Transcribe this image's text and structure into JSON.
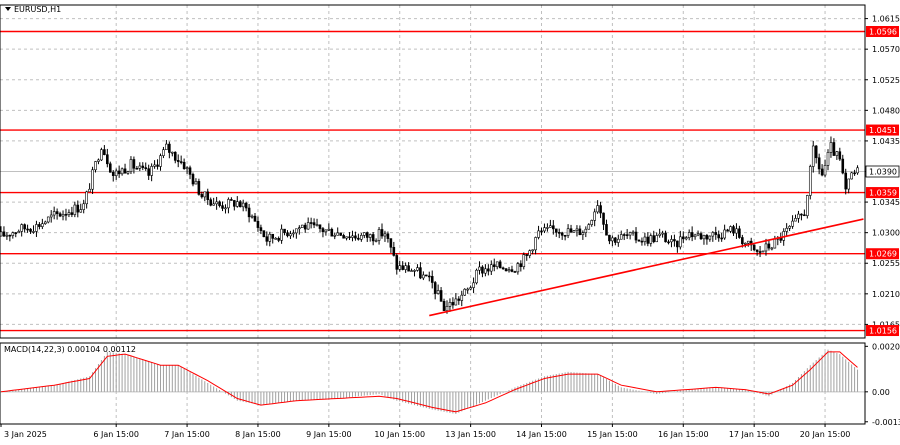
{
  "chart_data": [
    {
      "type": "candlestick",
      "title": "EURUSD,H1",
      "y_ticks": [
        "1.0615",
        "1.0570",
        "1.0525",
        "1.0480",
        "1.0435",
        "1.0390",
        "1.0345",
        "1.0300",
        "1.0255",
        "1.0210",
        "1.0165"
      ],
      "ylim": [
        1.0145,
        1.0635
      ],
      "x_ticks": [
        "3 Jan 2025",
        "6 Jan 15:00",
        "7 Jan 15:00",
        "8 Jan 15:00",
        "9 Jan 15:00",
        "10 Jan 15:00",
        "13 Jan 15:00",
        "14 Jan 15:00",
        "15 Jan 15:00",
        "16 Jan 15:00",
        "17 Jan 15:00",
        "20 Jan 15:00"
      ],
      "current_price": "1.0390",
      "horizontal_levels": [
        {
          "value": 1.0596,
          "label": "1.0596"
        },
        {
          "value": 1.0451,
          "label": "1.0451"
        },
        {
          "value": 1.0359,
          "label": "1.0359"
        },
        {
          "value": 1.0269,
          "label": "1.0269"
        },
        {
          "value": 1.0156,
          "label": "1.0156"
        }
      ],
      "trendline": {
        "from": {
          "x": "13 Jan 01:00",
          "y": 1.0178
        },
        "to": {
          "x": "21 Jan 04:00",
          "y": 1.032
        }
      },
      "close_path": [
        {
          "x": "3 Jan 00:00",
          "y": 1.0295
        },
        {
          "x": "3 Jan 06:00",
          "y": 1.0305
        },
        {
          "x": "3 Jan 12:00",
          "y": 1.031
        },
        {
          "x": "3 Jan 18:00",
          "y": 1.0325
        },
        {
          "x": "6 Jan 04:00",
          "y": 1.034
        },
        {
          "x": "6 Jan 10:00",
          "y": 1.043
        },
        {
          "x": "6 Jan 14:00",
          "y": 1.0385
        },
        {
          "x": "6 Jan 20:00",
          "y": 1.04
        },
        {
          "x": "7 Jan 02:00",
          "y": 1.0385
        },
        {
          "x": "7 Jan 08:00",
          "y": 1.0425
        },
        {
          "x": "7 Jan 14:00",
          "y": 1.04
        },
        {
          "x": "7 Jan 20:00",
          "y": 1.0355
        },
        {
          "x": "8 Jan 02:00",
          "y": 1.034
        },
        {
          "x": "8 Jan 08:00",
          "y": 1.0345
        },
        {
          "x": "8 Jan 12:00",
          "y": 1.033
        },
        {
          "x": "8 Jan 18:00",
          "y": 1.029
        },
        {
          "x": "9 Jan 00:00",
          "y": 1.03
        },
        {
          "x": "9 Jan 06:00",
          "y": 1.031
        },
        {
          "x": "9 Jan 12:00",
          "y": 1.0305
        },
        {
          "x": "9 Jan 18:00",
          "y": 1.03
        },
        {
          "x": "10 Jan 00:00",
          "y": 1.0295
        },
        {
          "x": "10 Jan 06:00",
          "y": 1.0295
        },
        {
          "x": "10 Jan 10:00",
          "y": 1.03
        },
        {
          "x": "10 Jan 14:00",
          "y": 1.025
        },
        {
          "x": "10 Jan 20:00",
          "y": 1.0245
        },
        {
          "x": "13 Jan 02:00",
          "y": 1.0225
        },
        {
          "x": "13 Jan 06:00",
          "y": 1.019
        },
        {
          "x": "13 Jan 10:00",
          "y": 1.02
        },
        {
          "x": "13 Jan 14:00",
          "y": 1.0215
        },
        {
          "x": "13 Jan 18:00",
          "y": 1.0245
        },
        {
          "x": "14 Jan 00:00",
          "y": 1.025
        },
        {
          "x": "14 Jan 06:00",
          "y": 1.025
        },
        {
          "x": "14 Jan 10:00",
          "y": 1.0265
        },
        {
          "x": "14 Jan 14:00",
          "y": 1.03
        },
        {
          "x": "14 Jan 20:00",
          "y": 1.0305
        },
        {
          "x": "15 Jan 02:00",
          "y": 1.03
        },
        {
          "x": "15 Jan 06:00",
          "y": 1.0305
        },
        {
          "x": "15 Jan 10:00",
          "y": 1.0345
        },
        {
          "x": "15 Jan 14:00",
          "y": 1.029
        },
        {
          "x": "15 Jan 20:00",
          "y": 1.0295
        },
        {
          "x": "16 Jan 02:00",
          "y": 1.029
        },
        {
          "x": "16 Jan 08:00",
          "y": 1.0295
        },
        {
          "x": "16 Jan 12:00",
          "y": 1.028
        },
        {
          "x": "16 Jan 16:00",
          "y": 1.03
        },
        {
          "x": "16 Jan 22:00",
          "y": 1.0295
        },
        {
          "x": "17 Jan 04:00",
          "y": 1.03
        },
        {
          "x": "17 Jan 08:00",
          "y": 1.0305
        },
        {
          "x": "17 Jan 12:00",
          "y": 1.0285
        },
        {
          "x": "17 Jan 16:00",
          "y": 1.027
        },
        {
          "x": "17 Jan 22:00",
          "y": 1.0285
        },
        {
          "x": "20 Jan 04:00",
          "y": 1.031
        },
        {
          "x": "20 Jan 08:00",
          "y": 1.033
        },
        {
          "x": "20 Jan 11:00",
          "y": 1.042
        },
        {
          "x": "20 Jan 14:00",
          "y": 1.0385
        },
        {
          "x": "20 Jan 17:00",
          "y": 1.0425
        },
        {
          "x": "20 Jan 20:00",
          "y": 1.0405
        },
        {
          "x": "20 Jan 22:00",
          "y": 1.036
        },
        {
          "x": "21 Jan 00:00",
          "y": 1.0385
        },
        {
          "x": "21 Jan 02:00",
          "y": 1.039
        }
      ]
    },
    {
      "type": "bar",
      "title": "MACD(14,22,3) 0.00104 0.00112",
      "y_ticks": [
        "0.00205",
        "0.00",
        "-0.00135"
      ],
      "ylim": [
        -0.00145,
        0.0022
      ],
      "histogram_path": [
        {
          "x": "3 Jan 00:00",
          "y": 0.0
        },
        {
          "x": "3 Jan 18:00",
          "y": 0.0003
        },
        {
          "x": "6 Jan 06:00",
          "y": 0.0007
        },
        {
          "x": "6 Jan 12:00",
          "y": 0.0018
        },
        {
          "x": "6 Jan 18:00",
          "y": 0.0017
        },
        {
          "x": "7 Jan 06:00",
          "y": 0.0012
        },
        {
          "x": "7 Jan 12:00",
          "y": 0.0012
        },
        {
          "x": "7 Jan 22:00",
          "y": 0.0004
        },
        {
          "x": "8 Jan 08:00",
          "y": -0.0004
        },
        {
          "x": "8 Jan 16:00",
          "y": -0.0006
        },
        {
          "x": "9 Jan 04:00",
          "y": -0.0004
        },
        {
          "x": "9 Jan 18:00",
          "y": -0.0003
        },
        {
          "x": "10 Jan 08:00",
          "y": -0.0001
        },
        {
          "x": "10 Jan 14:00",
          "y": -0.0004
        },
        {
          "x": "13 Jan 02:00",
          "y": -0.0008
        },
        {
          "x": "13 Jan 10:00",
          "y": -0.001
        },
        {
          "x": "13 Jan 20:00",
          "y": -0.0004
        },
        {
          "x": "14 Jan 06:00",
          "y": 0.0002
        },
        {
          "x": "14 Jan 16:00",
          "y": 0.0007
        },
        {
          "x": "15 Jan 00:00",
          "y": 0.0009
        },
        {
          "x": "15 Jan 10:00",
          "y": 0.0008
        },
        {
          "x": "15 Jan 18:00",
          "y": 0.0002
        },
        {
          "x": "16 Jan 06:00",
          "y": -0.0001
        },
        {
          "x": "16 Jan 16:00",
          "y": 0.0001
        },
        {
          "x": "17 Jan 02:00",
          "y": 0.0002
        },
        {
          "x": "17 Jan 12:00",
          "y": 0.0001
        },
        {
          "x": "17 Jan 20:00",
          "y": -0.0002
        },
        {
          "x": "20 Jan 04:00",
          "y": 0.0004
        },
        {
          "x": "20 Jan 10:00",
          "y": 0.0012
        },
        {
          "x": "20 Jan 16:00",
          "y": 0.0019
        },
        {
          "x": "20 Jan 20:00",
          "y": 0.0017
        },
        {
          "x": "21 Jan 02:00",
          "y": 0.001
        }
      ],
      "signal_path": [
        {
          "x": "3 Jan 00:00",
          "y": 0.0
        },
        {
          "x": "3 Jan 18:00",
          "y": 0.0003
        },
        {
          "x": "6 Jan 06:00",
          "y": 0.0006
        },
        {
          "x": "6 Jan 12:00",
          "y": 0.0016
        },
        {
          "x": "6 Jan 18:00",
          "y": 0.0017
        },
        {
          "x": "7 Jan 06:00",
          "y": 0.0012
        },
        {
          "x": "7 Jan 12:00",
          "y": 0.0012
        },
        {
          "x": "7 Jan 22:00",
          "y": 0.0005
        },
        {
          "x": "8 Jan 08:00",
          "y": -0.0003
        },
        {
          "x": "8 Jan 16:00",
          "y": -0.0006
        },
        {
          "x": "9 Jan 04:00",
          "y": -0.0004
        },
        {
          "x": "9 Jan 18:00",
          "y": -0.0003
        },
        {
          "x": "10 Jan 08:00",
          "y": -0.0002
        },
        {
          "x": "10 Jan 14:00",
          "y": -0.0003
        },
        {
          "x": "13 Jan 02:00",
          "y": -0.0007
        },
        {
          "x": "13 Jan 10:00",
          "y": -0.0009
        },
        {
          "x": "13 Jan 20:00",
          "y": -0.0005
        },
        {
          "x": "14 Jan 06:00",
          "y": 0.0001
        },
        {
          "x": "14 Jan 16:00",
          "y": 0.0006
        },
        {
          "x": "15 Jan 00:00",
          "y": 0.0008
        },
        {
          "x": "15 Jan 10:00",
          "y": 0.0008
        },
        {
          "x": "15 Jan 18:00",
          "y": 0.0003
        },
        {
          "x": "16 Jan 06:00",
          "y": 0.0
        },
        {
          "x": "16 Jan 16:00",
          "y": 0.0001
        },
        {
          "x": "17 Jan 02:00",
          "y": 0.0002
        },
        {
          "x": "17 Jan 12:00",
          "y": 0.0001
        },
        {
          "x": "17 Jan 20:00",
          "y": -0.0001
        },
        {
          "x": "20 Jan 04:00",
          "y": 0.0003
        },
        {
          "x": "20 Jan 10:00",
          "y": 0.001
        },
        {
          "x": "20 Jan 16:00",
          "y": 0.0018
        },
        {
          "x": "20 Jan 20:00",
          "y": 0.0018
        },
        {
          "x": "21 Jan 02:00",
          "y": 0.0011
        }
      ]
    }
  ],
  "colors": {
    "background": "#ffffff",
    "axis": "#000000",
    "grid": "#c0c0c0",
    "candle": "#000000",
    "level": "#ff0000",
    "label_text": "#ffffff",
    "price_box": "#ffffff",
    "macd_hist": "#a0a0a0",
    "macd_signal": "#ff0000"
  }
}
